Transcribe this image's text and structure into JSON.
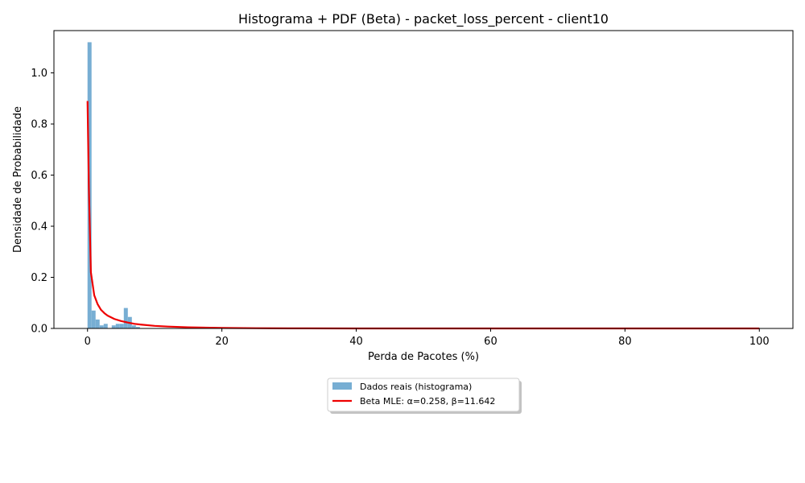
{
  "chart_data": {
    "type": "bar",
    "title": "Histograma + PDF (Beta) - packet_loss_percent - client10",
    "xlabel": "Perda de Pacotes (%)",
    "ylabel": "Densidade de Probabilidade",
    "xlim": [
      -5,
      105
    ],
    "ylim": [
      0,
      1.1655
    ],
    "xticks": [
      0,
      20,
      40,
      60,
      80,
      100
    ],
    "yticks": [
      0.0,
      0.2,
      0.4,
      0.6,
      0.8,
      1.0
    ],
    "grid": false,
    "legend_position": "below-center",
    "histogram": {
      "name": "Dados reais (histograma)",
      "color": "#77aed3",
      "bin_width": 0.6,
      "bins": [
        {
          "x0": 0.0,
          "value": 1.12
        },
        {
          "x0": 0.6,
          "value": 0.07
        },
        {
          "x0": 1.2,
          "value": 0.035
        },
        {
          "x0": 1.8,
          "value": 0.012
        },
        {
          "x0": 2.4,
          "value": 0.018
        },
        {
          "x0": 3.0,
          "value": 0.0
        },
        {
          "x0": 3.6,
          "value": 0.012
        },
        {
          "x0": 4.2,
          "value": 0.018
        },
        {
          "x0": 4.8,
          "value": 0.018
        },
        {
          "x0": 5.4,
          "value": 0.08
        },
        {
          "x0": 6.0,
          "value": 0.045
        },
        {
          "x0": 6.6,
          "value": 0.012
        },
        {
          "x0": 7.2,
          "value": 0.006
        }
      ]
    },
    "pdf_curve": {
      "name": "Beta MLE: α=0.258, β=11.642",
      "color": "#ee0000",
      "x": [
        0.0,
        0.2,
        0.5,
        1.0,
        1.5,
        2.0,
        2.5,
        3.0,
        4.0,
        5.0,
        6.0,
        7.0,
        8.0,
        10.0,
        12.0,
        15.0,
        20.0,
        25.0,
        30.0,
        40.0,
        50.0,
        60.0,
        80.0,
        100.0
      ],
      "y": [
        0.89,
        0.55,
        0.22,
        0.13,
        0.095,
        0.073,
        0.06,
        0.05,
        0.037,
        0.029,
        0.023,
        0.018,
        0.015,
        0.01,
        0.0072,
        0.0045,
        0.002,
        0.0009,
        0.0004,
        0.0001,
        2e-05,
        0.0,
        0.0,
        0.0
      ]
    }
  }
}
